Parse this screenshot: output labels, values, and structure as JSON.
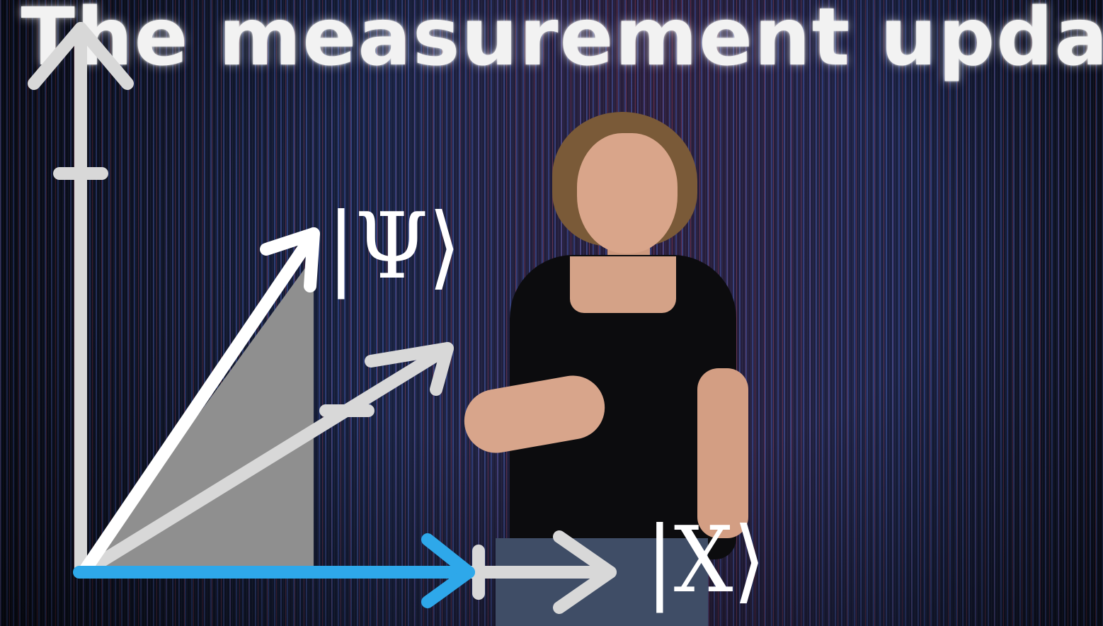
{
  "title": "The measurement update",
  "labels": {
    "psi_ket": "|Ψ⟩",
    "x_ket": "|X⟩"
  },
  "colors": {
    "axis": "#d8d8d8",
    "state_vector": "#ffffff",
    "projection": "#2ea8ea",
    "shaded_area": "#8f8f8f"
  },
  "icons": {
    "psi_arrow": "arrow-icon",
    "x_arrow": "arrow-icon"
  }
}
